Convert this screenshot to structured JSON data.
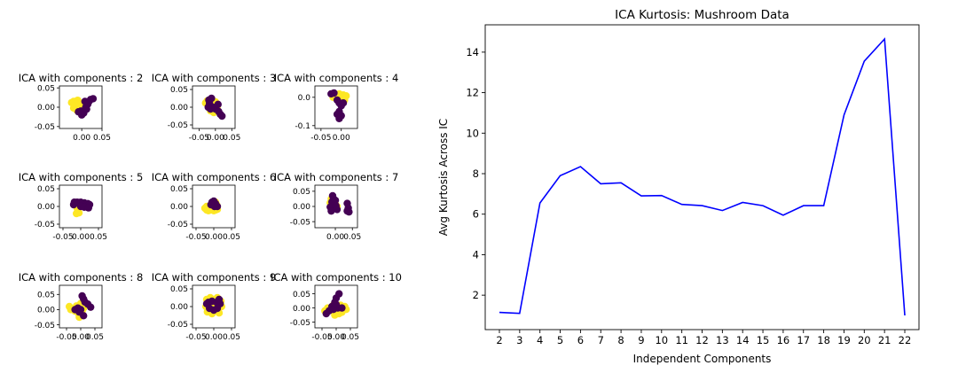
{
  "chart_data": [
    {
      "type": "scatter",
      "title": "ICA with components : 2",
      "xticks": [
        "0.00",
        "0.05"
      ],
      "yticks": [
        "-0.05",
        "0.00",
        "0.05"
      ],
      "xlim": [
        -0.055,
        0.05
      ],
      "ylim": [
        -0.055,
        0.055
      ],
      "colors": [
        "#440154",
        "#fde725"
      ],
      "points": [
        [
          -0.025,
          0.012,
          1
        ],
        [
          -0.02,
          0.015,
          1
        ],
        [
          -0.015,
          0.005,
          1
        ],
        [
          -0.02,
          -0.002,
          1
        ],
        [
          -0.01,
          0.018,
          1
        ],
        [
          -0.005,
          0.008,
          1
        ],
        [
          0.0,
          0.0,
          1
        ],
        [
          0.005,
          0.012,
          1
        ],
        [
          -0.012,
          -0.008,
          1
        ],
        [
          -0.002,
          -0.01,
          0
        ],
        [
          0.005,
          -0.015,
          0
        ],
        [
          0.01,
          0.0,
          0
        ],
        [
          0.015,
          0.008,
          0
        ],
        [
          0.018,
          0.015,
          0
        ],
        [
          0.022,
          0.02,
          0
        ],
        [
          0.028,
          0.022,
          0
        ],
        [
          0.008,
          0.015,
          0
        ],
        [
          0.0,
          -0.02,
          0
        ],
        [
          -0.008,
          -0.012,
          0
        ],
        [
          0.012,
          -0.005,
          0
        ]
      ]
    },
    {
      "type": "scatter",
      "title": "ICA with components : 3",
      "xticks": [
        "-0.05",
        "0.00",
        "0.05"
      ],
      "yticks": [
        "-0.05",
        "0.00",
        "0.05"
      ],
      "xlim": [
        -0.07,
        0.06
      ],
      "ylim": [
        -0.06,
        0.06
      ],
      "colors": [
        "#440154",
        "#fde725"
      ],
      "points": [
        [
          -0.03,
          0.012,
          1
        ],
        [
          -0.025,
          0.018,
          1
        ],
        [
          -0.02,
          0.005,
          1
        ],
        [
          -0.01,
          0.02,
          1
        ],
        [
          0.0,
          0.015,
          1
        ],
        [
          0.005,
          0.0,
          1
        ],
        [
          -0.015,
          -0.01,
          1
        ],
        [
          -0.005,
          -0.015,
          1
        ],
        [
          -0.02,
          0.02,
          0
        ],
        [
          -0.012,
          0.025,
          0
        ],
        [
          -0.018,
          0.01,
          0
        ],
        [
          -0.008,
          0.0,
          0
        ],
        [
          0.0,
          -0.005,
          0
        ],
        [
          0.01,
          -0.012,
          0
        ],
        [
          0.015,
          -0.02,
          0
        ],
        [
          0.02,
          -0.025,
          0
        ],
        [
          -0.015,
          -0.005,
          0
        ],
        [
          0.008,
          0.008,
          0
        ],
        [
          -0.022,
          0.0,
          0
        ]
      ]
    },
    {
      "type": "scatter",
      "title": "ICA with components : 4",
      "xticks": [
        "-0.05",
        "0.00"
      ],
      "yticks": [
        "-0.1",
        "0.0"
      ],
      "xlim": [
        -0.065,
        0.04
      ],
      "ylim": [
        -0.11,
        0.04
      ],
      "colors": [
        "#440154",
        "#fde725"
      ],
      "points": [
        [
          -0.015,
          0.01,
          1
        ],
        [
          -0.01,
          0.005,
          1
        ],
        [
          -0.005,
          0.012,
          1
        ],
        [
          0.0,
          0.0,
          1
        ],
        [
          0.005,
          0.008,
          1
        ],
        [
          0.012,
          0.005,
          1
        ],
        [
          -0.02,
          0.0,
          1
        ],
        [
          -0.008,
          -0.005,
          1
        ],
        [
          -0.002,
          -0.015,
          1
        ],
        [
          0.008,
          -0.01,
          1
        ],
        [
          -0.025,
          0.012,
          0
        ],
        [
          -0.018,
          0.015,
          0
        ],
        [
          -0.01,
          -0.01,
          0
        ],
        [
          -0.005,
          -0.02,
          0
        ],
        [
          0.0,
          -0.03,
          0
        ],
        [
          -0.005,
          -0.05,
          0
        ],
        [
          -0.01,
          -0.06,
          0
        ],
        [
          -0.005,
          -0.075,
          0
        ],
        [
          0.0,
          -0.065,
          0
        ],
        [
          0.005,
          -0.02,
          0
        ]
      ]
    },
    {
      "type": "scatter",
      "title": "ICA with components : 5",
      "xticks": [
        "-0.05",
        "0.00",
        "0.05"
      ],
      "yticks": [
        "-0.05",
        "0.00",
        "0.05"
      ],
      "xlim": [
        -0.06,
        0.06
      ],
      "ylim": [
        -0.06,
        0.06
      ],
      "colors": [
        "#440154",
        "#fde725"
      ],
      "points": [
        [
          -0.01,
          -0.005,
          1
        ],
        [
          -0.008,
          -0.012,
          1
        ],
        [
          -0.005,
          -0.018,
          1
        ],
        [
          -0.012,
          -0.02,
          1
        ],
        [
          -0.006,
          0.0,
          1
        ],
        [
          -0.015,
          0.01,
          0
        ],
        [
          -0.01,
          0.012,
          0
        ],
        [
          -0.005,
          0.008,
          0
        ],
        [
          0.0,
          0.012,
          0
        ],
        [
          0.005,
          0.008,
          0
        ],
        [
          0.01,
          0.01,
          0
        ],
        [
          0.015,
          0.005,
          0
        ],
        [
          0.02,
          0.008,
          0
        ],
        [
          0.025,
          0.005,
          0
        ],
        [
          -0.02,
          0.005,
          0
        ],
        [
          0.0,
          0.0,
          0
        ],
        [
          0.01,
          -0.002,
          0
        ],
        [
          0.022,
          -0.004,
          0
        ],
        [
          -0.018,
          0.012,
          0
        ]
      ]
    },
    {
      "type": "scatter",
      "title": "ICA with components : 6",
      "xticks": [
        "-0.05",
        "0.00",
        "0.05"
      ],
      "yticks": [
        "-0.05",
        "0.00",
        "0.05"
      ],
      "xlim": [
        -0.06,
        0.06
      ],
      "ylim": [
        -0.06,
        0.06
      ],
      "colors": [
        "#440154",
        "#fde725"
      ],
      "points": [
        [
          -0.025,
          -0.005,
          1
        ],
        [
          -0.02,
          -0.01,
          1
        ],
        [
          -0.015,
          -0.012,
          1
        ],
        [
          -0.01,
          -0.01,
          1
        ],
        [
          -0.005,
          -0.008,
          1
        ],
        [
          0.0,
          -0.012,
          1
        ],
        [
          0.005,
          -0.01,
          1
        ],
        [
          0.01,
          -0.008,
          1
        ],
        [
          -0.02,
          0.0,
          1
        ],
        [
          -0.01,
          -0.002,
          1
        ],
        [
          0.0,
          0.0,
          1
        ],
        [
          0.008,
          0.005,
          1
        ],
        [
          0.005,
          0.012,
          1
        ],
        [
          -0.005,
          0.012,
          0
        ],
        [
          0.0,
          0.015,
          0
        ],
        [
          0.005,
          0.008,
          0
        ],
        [
          0.002,
          0.0,
          0
        ],
        [
          -0.008,
          0.005,
          0
        ],
        [
          0.01,
          0.0,
          0
        ]
      ]
    },
    {
      "type": "scatter",
      "title": "ICA with components : 7",
      "xticks": [
        "0.00",
        "0.05"
      ],
      "yticks": [
        "-0.05",
        "0.00",
        "0.05"
      ],
      "xlim": [
        -0.06,
        0.065
      ],
      "ylim": [
        -0.07,
        0.07
      ],
      "colors": [
        "#440154",
        "#fde725"
      ],
      "points": [
        [
          -0.015,
          0.012,
          1
        ],
        [
          -0.01,
          0.0,
          1
        ],
        [
          -0.005,
          -0.005,
          1
        ],
        [
          0.0,
          0.008,
          1
        ],
        [
          0.005,
          0.0,
          1
        ],
        [
          -0.012,
          0.025,
          1
        ],
        [
          -0.008,
          0.035,
          0
        ],
        [
          -0.005,
          0.025,
          0
        ],
        [
          -0.01,
          0.015,
          0
        ],
        [
          0.0,
          0.02,
          0
        ],
        [
          -0.015,
          -0.002,
          0
        ],
        [
          -0.012,
          -0.015,
          0
        ],
        [
          0.005,
          -0.01,
          0
        ],
        [
          0.035,
          0.01,
          0
        ],
        [
          0.038,
          -0.005,
          0
        ],
        [
          0.035,
          -0.015,
          0
        ],
        [
          0.04,
          -0.018,
          0
        ],
        [
          0.002,
          0.002,
          0
        ]
      ]
    },
    {
      "type": "scatter",
      "title": "ICA with components : 8",
      "xticks": [
        "-0.05",
        "0.00",
        "0.05"
      ],
      "yticks": [
        "-0.05",
        "0.00",
        "0.05"
      ],
      "xlim": [
        -0.075,
        0.075
      ],
      "ylim": [
        -0.06,
        0.08
      ],
      "colors": [
        "#440154",
        "#fde725"
      ],
      "points": [
        [
          -0.04,
          0.01,
          1
        ],
        [
          -0.035,
          0.0,
          1
        ],
        [
          -0.02,
          -0.005,
          1
        ],
        [
          -0.01,
          -0.01,
          1
        ],
        [
          0.0,
          -0.015,
          1
        ],
        [
          0.005,
          -0.005,
          1
        ],
        [
          -0.015,
          0.012,
          1
        ],
        [
          0.0,
          0.02,
          1
        ],
        [
          0.01,
          0.005,
          1
        ],
        [
          -0.005,
          -0.025,
          1
        ],
        [
          -0.02,
          0.0,
          0
        ],
        [
          -0.01,
          0.005,
          0
        ],
        [
          0.0,
          0.0,
          0
        ],
        [
          0.005,
          0.045,
          0
        ],
        [
          0.01,
          0.035,
          0
        ],
        [
          0.015,
          0.025,
          0
        ],
        [
          0.025,
          0.018,
          0
        ],
        [
          0.035,
          0.008,
          0
        ],
        [
          -0.005,
          -0.008,
          0
        ],
        [
          0.01,
          -0.02,
          0
        ]
      ]
    },
    {
      "type": "scatter",
      "title": "ICA with components : 9",
      "xticks": [
        "-0.05",
        "0.00",
        "0.05"
      ],
      "yticks": [
        "-0.05",
        "0.00",
        "0.05"
      ],
      "xlim": [
        -0.06,
        0.06
      ],
      "ylim": [
        -0.06,
        0.06
      ],
      "colors": [
        "#440154",
        "#fde725"
      ],
      "points": [
        [
          -0.02,
          0.02,
          1
        ],
        [
          -0.01,
          0.025,
          1
        ],
        [
          0.0,
          0.02,
          1
        ],
        [
          0.01,
          0.025,
          1
        ],
        [
          0.02,
          0.015,
          1
        ],
        [
          -0.022,
          0.0,
          1
        ],
        [
          0.022,
          0.0,
          1
        ],
        [
          -0.018,
          -0.015,
          1
        ],
        [
          -0.005,
          -0.02,
          1
        ],
        [
          0.015,
          -0.018,
          1
        ],
        [
          0.0,
          0.0,
          1
        ],
        [
          -0.015,
          0.012,
          0
        ],
        [
          -0.005,
          0.015,
          0
        ],
        [
          0.008,
          0.012,
          0
        ],
        [
          0.018,
          0.008,
          0
        ],
        [
          -0.012,
          -0.005,
          0
        ],
        [
          0.0,
          -0.01,
          0
        ],
        [
          0.01,
          -0.005,
          0
        ],
        [
          -0.02,
          0.008,
          0
        ],
        [
          0.015,
          0.02,
          0
        ]
      ]
    },
    {
      "type": "scatter",
      "title": "ICA with components : 10",
      "xticks": [
        "-0.05",
        "0.00",
        "0.05"
      ],
      "yticks": [
        "-0.05",
        "0.00",
        "0.05"
      ],
      "xlim": [
        -0.075,
        0.075
      ],
      "ylim": [
        -0.07,
        0.08
      ],
      "colors": [
        "#440154",
        "#fde725"
      ],
      "points": [
        [
          -0.04,
          -0.01,
          1
        ],
        [
          -0.03,
          0.0,
          1
        ],
        [
          -0.01,
          0.01,
          1
        ],
        [
          0.0,
          -0.01,
          1
        ],
        [
          0.015,
          0.01,
          1
        ],
        [
          0.03,
          0.005,
          1
        ],
        [
          0.035,
          -0.005,
          1
        ],
        [
          0.01,
          -0.02,
          1
        ],
        [
          -0.005,
          -0.025,
          1
        ],
        [
          0.02,
          -0.015,
          1
        ],
        [
          -0.035,
          -0.02,
          0
        ],
        [
          -0.025,
          -0.01,
          0
        ],
        [
          -0.015,
          0.005,
          0
        ],
        [
          -0.005,
          0.02,
          0
        ],
        [
          0.0,
          0.035,
          0
        ],
        [
          0.01,
          0.05,
          0
        ],
        [
          0.005,
          0.0,
          0
        ],
        [
          0.02,
          0.0,
          0
        ],
        [
          -0.01,
          -0.005,
          0
        ],
        [
          0.0,
          0.012,
          0
        ]
      ]
    },
    {
      "type": "line",
      "title": "ICA Kurtosis: Mushroom Data",
      "xlabel": "Independent Components",
      "ylabel": "Avg Kurtosis Across IC",
      "x": [
        2,
        3,
        4,
        5,
        6,
        7,
        8,
        9,
        10,
        11,
        12,
        13,
        14,
        15,
        16,
        17,
        18,
        19,
        20,
        21,
        22
      ],
      "y": [
        1.15,
        1.1,
        6.55,
        7.9,
        8.35,
        7.5,
        7.55,
        6.9,
        6.92,
        6.48,
        6.42,
        6.18,
        6.58,
        6.42,
        5.95,
        6.42,
        6.42,
        10.9,
        13.55,
        14.65,
        1.0
      ],
      "xticks": [
        "2",
        "3",
        "4",
        "5",
        "6",
        "7",
        "8",
        "9",
        "10",
        "11",
        "12",
        "13",
        "14",
        "15",
        "16",
        "17",
        "18",
        "19",
        "20",
        "21",
        "22"
      ],
      "yticks": [
        "2",
        "4",
        "6",
        "8",
        "10",
        "12",
        "14"
      ],
      "xlim": [
        1.3,
        22.7
      ],
      "ylim": [
        0.3,
        15.35
      ],
      "color": "#0000ff",
      "grid": false
    }
  ]
}
